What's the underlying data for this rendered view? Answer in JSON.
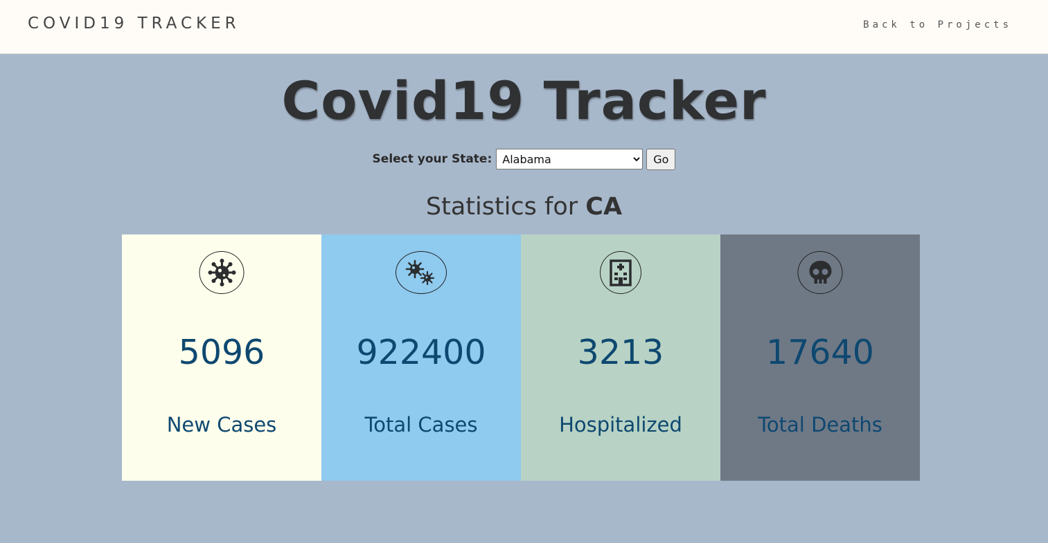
{
  "navbar": {
    "brand": "COVID19 TRACKER",
    "back_link": "Back to Projects"
  },
  "hero": {
    "title": "Covid19 Tracker"
  },
  "form": {
    "label": "Select your State:",
    "selected_state": "Alabama",
    "go_label": "Go"
  },
  "stats": {
    "heading_prefix": "Statistics for",
    "state_code": "CA",
    "cards": [
      {
        "value": "5096",
        "label": "New Cases",
        "icon": "virus-icon",
        "color": "#fefeec"
      },
      {
        "value": "922400",
        "label": "Total Cases",
        "icon": "viruses-icon",
        "color": "#8fcaef"
      },
      {
        "value": "3213",
        "label": "Hospitalized",
        "icon": "hospital-icon",
        "color": "#b8d3c5"
      },
      {
        "value": "17640",
        "label": "Total Deaths",
        "icon": "skull-icon",
        "color": "#6f7986"
      }
    ]
  }
}
